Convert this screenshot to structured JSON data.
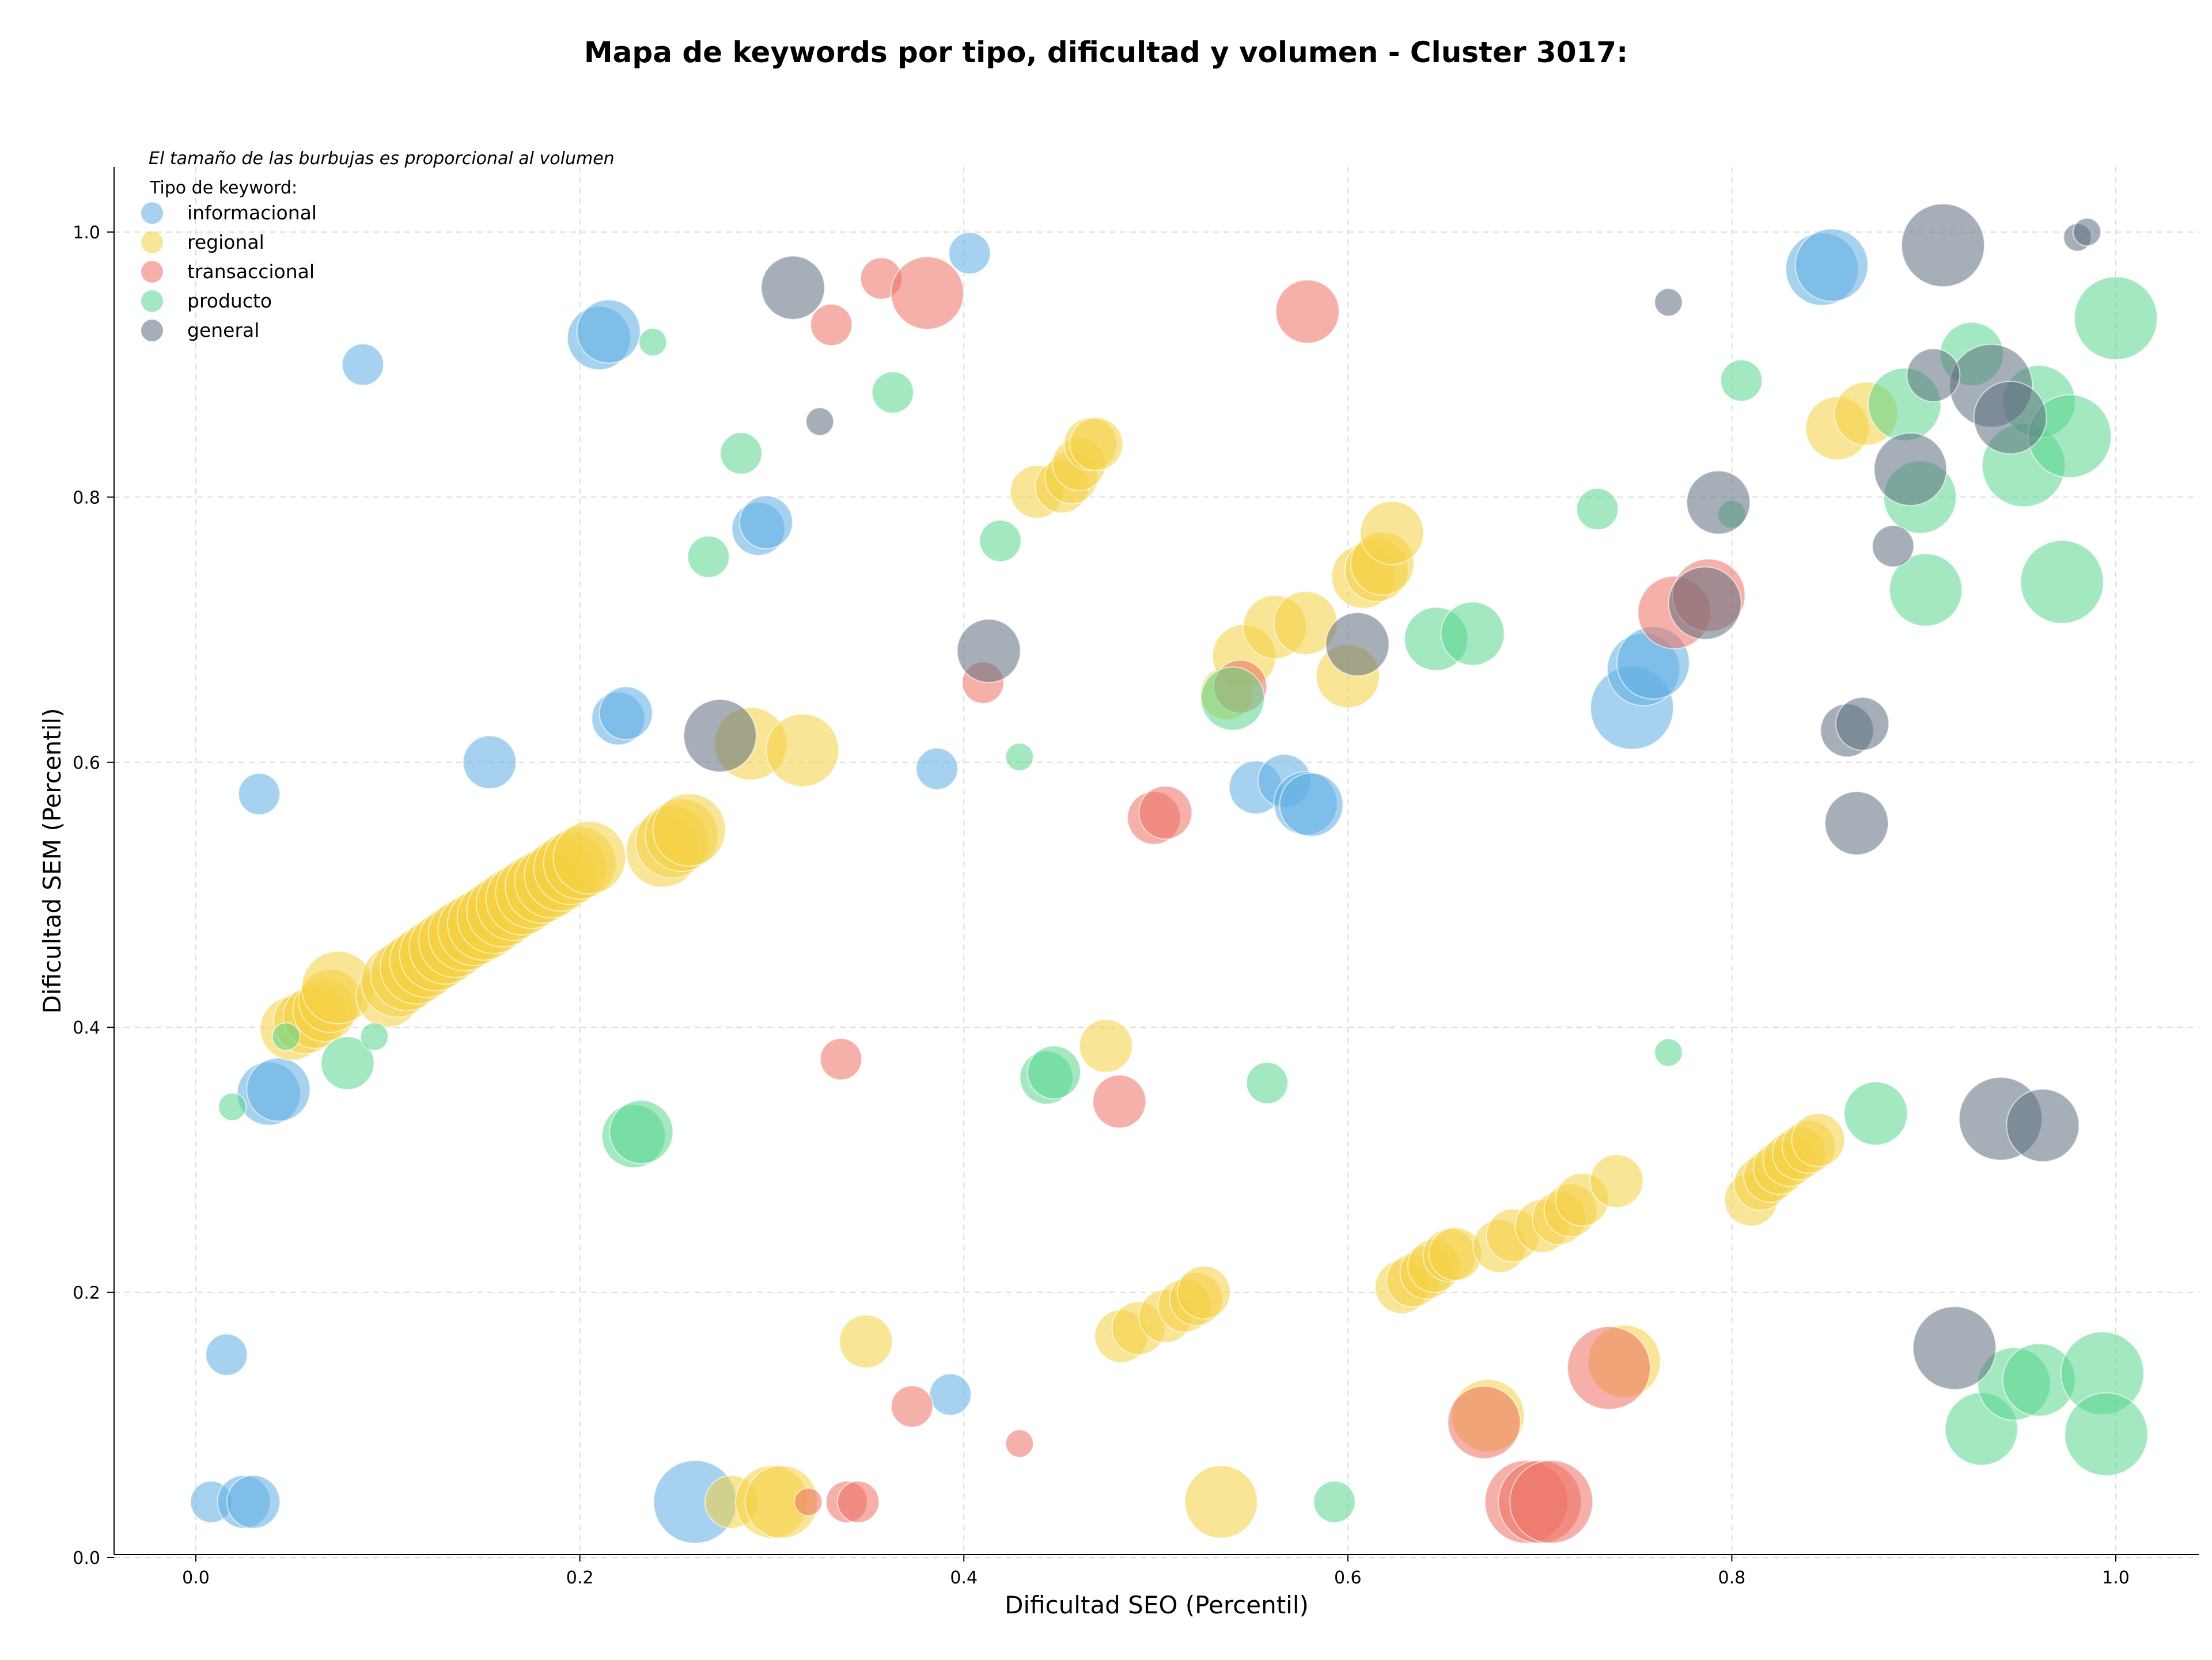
{
  "chart_data": {
    "type": "scatter",
    "title": "Mapa de keywords por tipo, dificultad y volumen - Cluster 3017:",
    "xlabel": "Dificultad SEO (Percentil)",
    "ylabel": "Dificultad SEM (Percentil)",
    "note": "El tamaño de las burbujas es proporcional al volumen",
    "legend_title": "Tipo de keyword:",
    "legend_position": "top-left",
    "grid": true,
    "xlim": [
      -0.04,
      1.05
    ],
    "ylim": [
      -0.005,
      1.045
    ],
    "xticks": [
      "0.0",
      "0.2",
      "0.4",
      "0.6",
      "0.8",
      "1.0"
    ],
    "yticks": [
      "0.0",
      "0.2",
      "0.4",
      "0.6",
      "0.8",
      "1.0"
    ],
    "series": [
      {
        "name": "informacional",
        "color": "#5dade2",
        "points": [
          [
            0.008,
            0.042,
            2
          ],
          [
            0.025,
            0.042,
            3
          ],
          [
            0.03,
            0.042,
            3
          ],
          [
            0.016,
            0.153,
            2
          ],
          [
            0.033,
            0.576,
            2
          ],
          [
            0.038,
            0.35,
            4
          ],
          [
            0.043,
            0.353,
            4
          ],
          [
            0.087,
            0.9,
            2
          ],
          [
            0.153,
            0.6,
            3
          ],
          [
            0.21,
            0.92,
            4
          ],
          [
            0.215,
            0.925,
            4
          ],
          [
            0.22,
            0.633,
            3
          ],
          [
            0.224,
            0.637,
            3
          ],
          [
            0.26,
            0.042,
            6
          ],
          [
            0.293,
            0.776,
            3
          ],
          [
            0.297,
            0.781,
            3
          ],
          [
            0.386,
            0.595,
            2
          ],
          [
            0.393,
            0.123,
            2
          ],
          [
            0.403,
            0.984,
            2
          ],
          [
            0.552,
            0.581,
            3
          ],
          [
            0.567,
            0.586,
            3
          ],
          [
            0.578,
            0.569,
            4
          ],
          [
            0.581,
            0.568,
            4
          ],
          [
            0.748,
            0.641,
            6
          ],
          [
            0.754,
            0.67,
            5
          ],
          [
            0.759,
            0.675,
            5
          ],
          [
            0.847,
            0.972,
            5
          ],
          [
            0.852,
            0.975,
            5
          ]
        ]
      },
      {
        "name": "regional",
        "color": "#f4d03f",
        "points": [
          [
            0.05,
            0.399,
            4
          ],
          [
            0.057,
            0.404,
            4
          ],
          [
            0.062,
            0.408,
            4
          ],
          [
            0.067,
            0.413,
            4
          ],
          [
            0.07,
            0.42,
            4
          ],
          [
            0.074,
            0.43,
            5
          ],
          [
            0.1,
            0.424,
            4
          ],
          [
            0.105,
            0.435,
            5
          ],
          [
            0.11,
            0.44,
            5
          ],
          [
            0.115,
            0.445,
            5
          ],
          [
            0.12,
            0.45,
            5
          ],
          [
            0.125,
            0.455,
            5
          ],
          [
            0.13,
            0.46,
            5
          ],
          [
            0.135,
            0.465,
            5
          ],
          [
            0.14,
            0.47,
            5
          ],
          [
            0.145,
            0.474,
            5
          ],
          [
            0.15,
            0.478,
            5
          ],
          [
            0.155,
            0.483,
            5
          ],
          [
            0.16,
            0.488,
            5
          ],
          [
            0.165,
            0.493,
            5
          ],
          [
            0.17,
            0.497,
            5
          ],
          [
            0.175,
            0.502,
            5
          ],
          [
            0.18,
            0.506,
            5
          ],
          [
            0.185,
            0.51,
            5
          ],
          [
            0.19,
            0.515,
            5
          ],
          [
            0.195,
            0.52,
            5
          ],
          [
            0.2,
            0.524,
            5
          ],
          [
            0.205,
            0.528,
            5
          ],
          [
            0.243,
            0.533,
            5
          ],
          [
            0.248,
            0.54,
            5
          ],
          [
            0.253,
            0.545,
            5
          ],
          [
            0.257,
            0.549,
            5
          ],
          [
            0.289,
            0.614,
            5
          ],
          [
            0.316,
            0.609,
            5
          ],
          [
            0.279,
            0.042,
            3
          ],
          [
            0.3,
            0.042,
            5
          ],
          [
            0.305,
            0.042,
            5
          ],
          [
            0.349,
            0.163,
            3
          ],
          [
            0.438,
            0.804,
            3
          ],
          [
            0.451,
            0.808,
            3
          ],
          [
            0.456,
            0.815,
            3
          ],
          [
            0.46,
            0.825,
            3
          ],
          [
            0.466,
            0.84,
            3
          ],
          [
            0.469,
            0.84,
            3
          ],
          [
            0.474,
            0.386,
            3
          ],
          [
            0.482,
            0.167,
            3
          ],
          [
            0.491,
            0.173,
            3
          ],
          [
            0.505,
            0.182,
            3
          ],
          [
            0.515,
            0.19,
            3
          ],
          [
            0.521,
            0.195,
            3
          ],
          [
            0.525,
            0.2,
            3
          ],
          [
            0.534,
            0.042,
            5
          ],
          [
            0.537,
            0.652,
            3
          ],
          [
            0.546,
            0.68,
            4
          ],
          [
            0.562,
            0.702,
            4
          ],
          [
            0.578,
            0.705,
            4
          ],
          [
            0.6,
            0.665,
            4
          ],
          [
            0.608,
            0.74,
            4
          ],
          [
            0.615,
            0.745,
            4
          ],
          [
            0.618,
            0.75,
            4
          ],
          [
            0.623,
            0.773,
            4
          ],
          [
            0.628,
            0.204,
            3
          ],
          [
            0.634,
            0.209,
            3
          ],
          [
            0.641,
            0.215,
            3
          ],
          [
            0.645,
            0.22,
            3
          ],
          [
            0.653,
            0.228,
            3
          ],
          [
            0.656,
            0.229,
            3
          ],
          [
            0.673,
            0.107,
            5
          ],
          [
            0.679,
            0.235,
            3
          ],
          [
            0.686,
            0.243,
            3
          ],
          [
            0.701,
            0.25,
            3
          ],
          [
            0.71,
            0.256,
            3
          ],
          [
            0.716,
            0.262,
            3
          ],
          [
            0.722,
            0.27,
            3
          ],
          [
            0.74,
            0.284,
            3
          ],
          [
            0.744,
            0.148,
            5
          ],
          [
            0.81,
            0.27,
            3
          ],
          [
            0.815,
            0.282,
            3
          ],
          [
            0.82,
            0.288,
            3
          ],
          [
            0.825,
            0.294,
            3
          ],
          [
            0.83,
            0.3,
            3
          ],
          [
            0.835,
            0.305,
            3
          ],
          [
            0.84,
            0.31,
            3
          ],
          [
            0.845,
            0.315,
            3
          ],
          [
            0.855,
            0.852,
            4
          ],
          [
            0.87,
            0.863,
            4
          ]
        ]
      },
      {
        "name": "transaccional",
        "color": "#ec7063",
        "points": [
          [
            0.319,
            0.042,
            1
          ],
          [
            0.331,
            0.93,
            2
          ],
          [
            0.336,
            0.376,
            2
          ],
          [
            0.339,
            0.042,
            2
          ],
          [
            0.345,
            0.042,
            2
          ],
          [
            0.357,
            0.965,
            2
          ],
          [
            0.373,
            0.114,
            2
          ],
          [
            0.381,
            0.954,
            5
          ],
          [
            0.41,
            0.66,
            2
          ],
          [
            0.429,
            0.086,
            1
          ],
          [
            0.481,
            0.344,
            3
          ],
          [
            0.499,
            0.558,
            3
          ],
          [
            0.505,
            0.562,
            3
          ],
          [
            0.544,
            0.657,
            3
          ],
          [
            0.579,
            0.94,
            4
          ],
          [
            0.671,
            0.102,
            5
          ],
          [
            0.693,
            0.042,
            6
          ],
          [
            0.7,
            0.042,
            6
          ],
          [
            0.706,
            0.042,
            6
          ],
          [
            0.736,
            0.143,
            6
          ],
          [
            0.77,
            0.713,
            5
          ],
          [
            0.788,
            0.726,
            5
          ]
        ]
      },
      {
        "name": "producto",
        "color": "#58d68d",
        "points": [
          [
            0.019,
            0.34,
            1
          ],
          [
            0.047,
            0.393,
            1
          ],
          [
            0.079,
            0.373,
            3
          ],
          [
            0.093,
            0.393,
            1
          ],
          [
            0.228,
            0.318,
            4
          ],
          [
            0.232,
            0.321,
            4
          ],
          [
            0.238,
            0.917,
            1
          ],
          [
            0.267,
            0.755,
            2
          ],
          [
            0.284,
            0.833,
            2
          ],
          [
            0.363,
            0.879,
            2
          ],
          [
            0.419,
            0.767,
            2
          ],
          [
            0.429,
            0.604,
            1
          ],
          [
            0.443,
            0.362,
            3
          ],
          [
            0.447,
            0.366,
            3
          ],
          [
            0.54,
            0.648,
            4
          ],
          [
            0.558,
            0.358,
            2
          ],
          [
            0.593,
            0.042,
            2
          ],
          [
            0.646,
            0.693,
            4
          ],
          [
            0.665,
            0.697,
            4
          ],
          [
            0.73,
            0.791,
            2
          ],
          [
            0.767,
            0.381,
            1
          ],
          [
            0.8,
            0.787,
            1
          ],
          [
            0.805,
            0.888,
            2
          ],
          [
            0.875,
            0.335,
            4
          ],
          [
            0.89,
            0.87,
            5
          ],
          [
            0.898,
            0.8,
            5
          ],
          [
            0.901,
            0.73,
            5
          ],
          [
            0.925,
            0.908,
            4
          ],
          [
            0.93,
            0.097,
            5
          ],
          [
            0.947,
            0.131,
            5
          ],
          [
            0.952,
            0.824,
            6
          ],
          [
            0.96,
            0.134,
            5
          ],
          [
            0.96,
            0.872,
            5
          ],
          [
            0.972,
            0.736,
            6
          ],
          [
            0.976,
            0.846,
            6
          ],
          [
            0.993,
            0.139,
            6
          ],
          [
            0.995,
            0.093,
            6
          ],
          [
            1.0,
            0.935,
            6
          ]
        ]
      },
      {
        "name": "general",
        "color": "#5d6d7e",
        "points": [
          [
            0.311,
            0.958,
            4
          ],
          [
            0.325,
            0.857,
            1
          ],
          [
            0.413,
            0.684,
            4
          ],
          [
            0.273,
            0.62,
            5
          ],
          [
            0.605,
            0.689,
            4
          ],
          [
            0.767,
            0.947,
            1
          ],
          [
            0.793,
            0.796,
            4
          ],
          [
            0.786,
            0.72,
            5
          ],
          [
            0.86,
            0.624,
            3
          ],
          [
            0.865,
            0.554,
            4
          ],
          [
            0.868,
            0.629,
            3
          ],
          [
            0.884,
            0.763,
            2
          ],
          [
            0.893,
            0.821,
            5
          ],
          [
            0.91,
            0.99,
            6
          ],
          [
            0.916,
            0.158,
            6
          ],
          [
            0.94,
            0.331,
            6
          ],
          [
            0.962,
            0.326,
            5
          ],
          [
            0.98,
            0.996,
            1
          ],
          [
            0.985,
            1.0,
            1
          ],
          [
            0.935,
            0.884,
            6
          ],
          [
            0.945,
            0.86,
            5
          ],
          [
            0.905,
            0.892,
            3
          ]
        ]
      }
    ]
  }
}
